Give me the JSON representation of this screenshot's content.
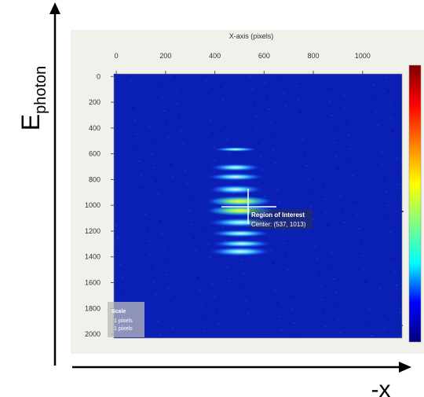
{
  "chart_data": {
    "type": "image",
    "xlabel": "X-axis (pixels)",
    "xlim": [
      -10,
      1160
    ],
    "xticks": [
      0,
      200,
      400,
      600,
      800,
      1000
    ],
    "ylim": [
      -20,
      2030
    ],
    "yticks": [
      0,
      200,
      400,
      600,
      800,
      1000,
      1200,
      1400,
      1600,
      1800,
      2000
    ],
    "colormap": [
      "#00007f",
      "#0000ff",
      "#00ffff",
      "#7fff7f",
      "#ffff00",
      "#ff7f00",
      "#ff0000",
      "#7f0000"
    ],
    "roi": {
      "label": "Region of Interest",
      "center_label": "Center: (537, 1013)"
    },
    "scale_box": {
      "title": "Scale",
      "lines": [
        "1 pixels",
        "1 pixels"
      ]
    },
    "y_arrow_label": {
      "main": "E",
      "sub": "photon"
    },
    "x_arrow_label": "-x"
  }
}
